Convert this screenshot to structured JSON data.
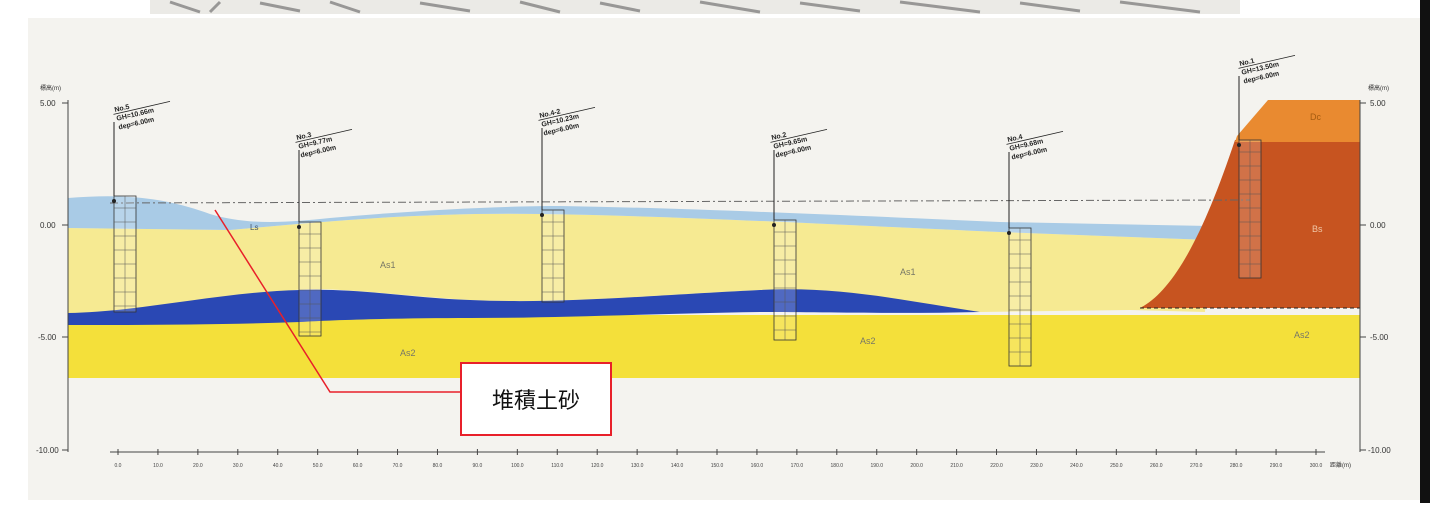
{
  "callout": {
    "label": "堆積土砂"
  },
  "elevation_axis": {
    "left_header": "標高(m)",
    "right_header": "標高(m)",
    "left_ticks": [
      "5.00",
      "0.00",
      "-5.00",
      "-10.00"
    ],
    "right_ticks": [
      "5.00",
      "0.00",
      "-5.00",
      "-10.00"
    ],
    "bottom_unit": "距離(m)"
  },
  "distance_ticks": [
    "0.0",
    "10.0",
    "20.0",
    "30.0",
    "40.0",
    "50.0",
    "60.0",
    "70.0",
    "80.0",
    "90.0",
    "100.0",
    "110.0",
    "120.0",
    "130.0",
    "140.0",
    "150.0",
    "160.0",
    "170.0",
    "180.0",
    "190.0",
    "200.0",
    "210.0",
    "220.0",
    "230.0",
    "240.0",
    "250.0",
    "260.0",
    "270.0",
    "280.0",
    "290.0",
    "300.0"
  ],
  "boreholes": [
    {
      "no": "No.5",
      "gh": "GH=10.66m",
      "dep": "dep=6.00m"
    },
    {
      "no": "No.3",
      "gh": "GH=9.77m",
      "dep": "dep=6.00m"
    },
    {
      "no": "No.4-2",
      "gh": "GH=10.23m",
      "dep": "dep=6.00m"
    },
    {
      "no": "No.2",
      "gh": "GH=9.65m",
      "dep": "dep=6.00m"
    },
    {
      "no": "No.4",
      "gh": "GH=9.68m",
      "dep": "dep=6.00m"
    },
    {
      "no": "No.1",
      "gh": "GH=13.50m",
      "dep": "dep=6.00m"
    }
  ],
  "layers": {
    "deposit": "Ls",
    "as1_left": "As1",
    "as1_right": "As1",
    "as2_left": "As2",
    "as2_right": "As2",
    "as2_far": "As2",
    "bs": "Bs",
    "dc": "Dc"
  },
  "colors": {
    "deposit": "#a9cbe6",
    "sand": "#f6ea92",
    "clay_blue": "#2a48b4",
    "sand_lower": "#f4e03a",
    "bank_red": "#c75420",
    "bank_top": "#e98a30",
    "callout_border": "#e8202a"
  }
}
